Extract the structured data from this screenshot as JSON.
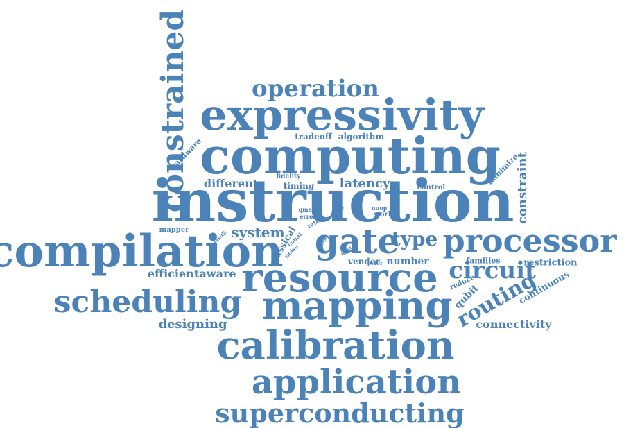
{
  "colors": {
    "word": "#4b83b8",
    "background": "#ffffff"
  },
  "words": [
    {
      "text": "instruction"
    },
    {
      "text": "computing"
    },
    {
      "text": "expressivity"
    },
    {
      "text": "compilation"
    },
    {
      "text": "resource"
    },
    {
      "text": "processor"
    },
    {
      "text": "gate"
    },
    {
      "text": "mapping"
    },
    {
      "text": "calibration"
    },
    {
      "text": "application"
    },
    {
      "text": "scheduling"
    },
    {
      "text": "superconducting"
    },
    {
      "text": "constrained"
    },
    {
      "text": "operation"
    },
    {
      "text": "circuit"
    },
    {
      "text": "routing"
    },
    {
      "text": "type"
    },
    {
      "text": "constraint"
    },
    {
      "text": "system"
    },
    {
      "text": "latency"
    },
    {
      "text": "different"
    },
    {
      "text": "designing"
    },
    {
      "text": "efficient"
    },
    {
      "text": "aware"
    },
    {
      "text": "connectivity"
    },
    {
      "text": "restriction"
    },
    {
      "text": "number"
    },
    {
      "text": "vendor"
    },
    {
      "text": "classical"
    },
    {
      "text": "families"
    },
    {
      "text": "qubit"
    },
    {
      "text": "continuous"
    },
    {
      "text": "reduce"
    },
    {
      "text": "hardware"
    },
    {
      "text": "tradeoff"
    },
    {
      "text": "algorithm"
    },
    {
      "text": "minimize"
    },
    {
      "text": "timing"
    },
    {
      "text": "fidelity"
    },
    {
      "text": "control"
    },
    {
      "text": "mapper"
    },
    {
      "text": "work"
    },
    {
      "text": "nuop"
    },
    {
      "text": "qmap"
    },
    {
      "text": "error"
    },
    {
      "text": "rate"
    },
    {
      "text": "angle"
    },
    {
      "text": "term"
    },
    {
      "text": "result"
    },
    {
      "text": "count"
    },
    {
      "text": "noise"
    },
    {
      "text": "prior"
    },
    {
      "text": "set"
    },
    {
      "text": "lib"
    }
  ]
}
